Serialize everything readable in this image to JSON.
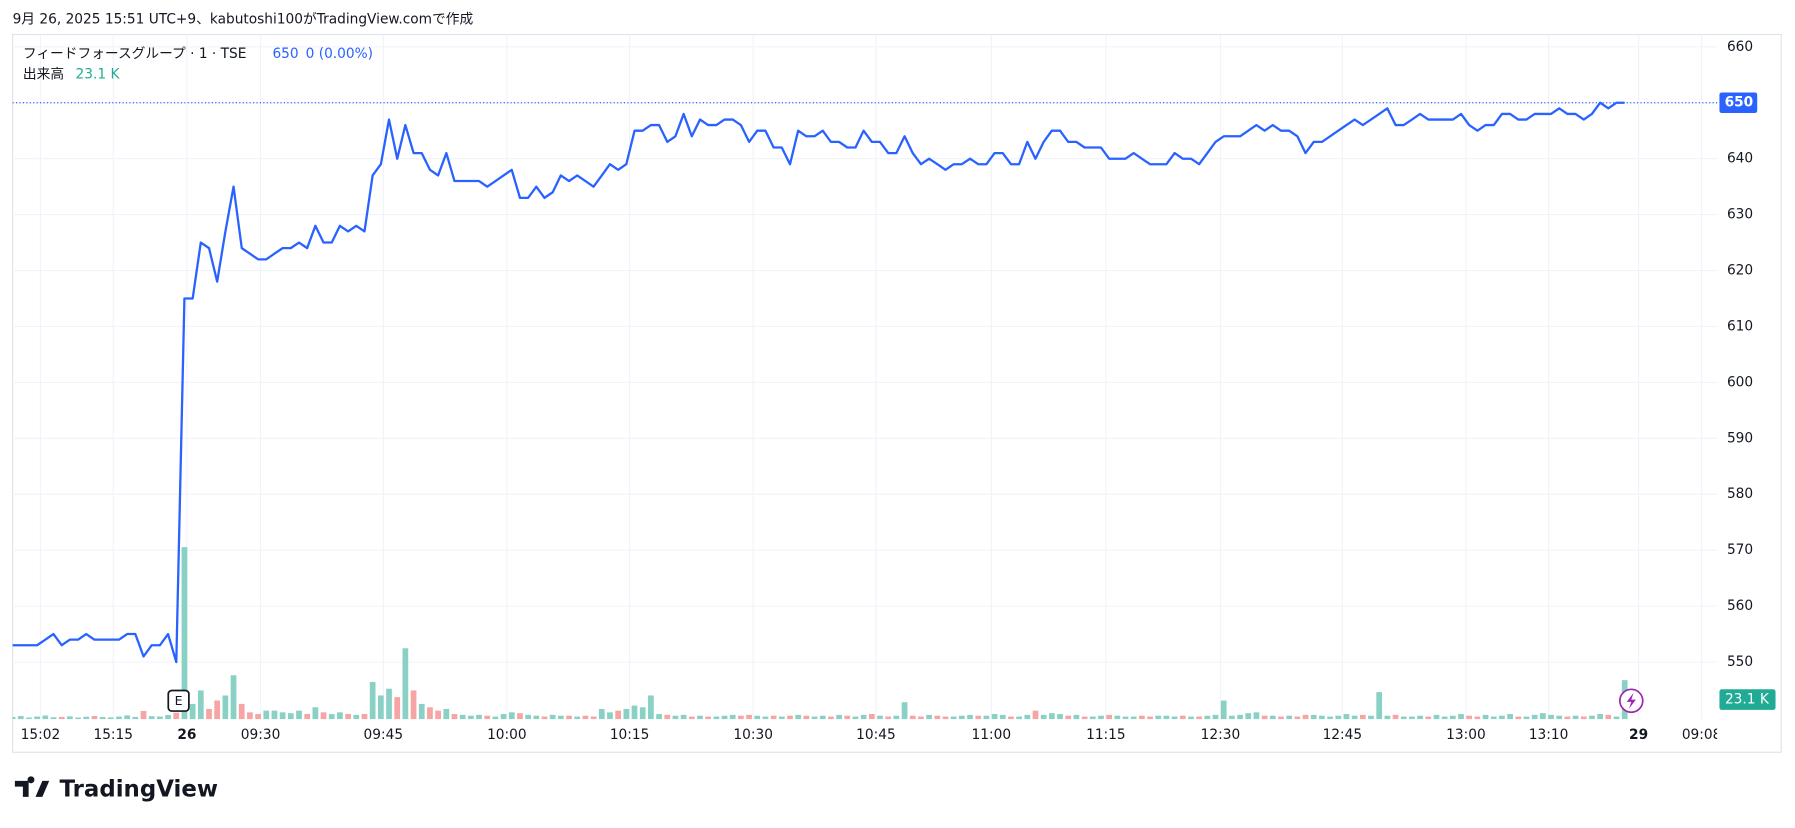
{
  "header": "9月 26, 2025 15:51 UTC+9、kabutoshi100がTradingView.comで作成",
  "footer": {
    "brand": "TradingView"
  },
  "chart_data": {
    "type": "line",
    "title": "フィードフォースグループ · 1 · TSE",
    "last_price": 650,
    "change": "0 (0.00%)",
    "color": "#2962ff",
    "volume_name": "出来高",
    "volume_last_label": "23.1 K",
    "up_color": "#89d1c4",
    "down_color": "#f7a4a4",
    "values": [
      553,
      553,
      553,
      553,
      554,
      555,
      553,
      554,
      554,
      555,
      554,
      554,
      554,
      554,
      555,
      555,
      551,
      553,
      553,
      555,
      550,
      615,
      615,
      625,
      624,
      618,
      627,
      635,
      624,
      623,
      622,
      622,
      623,
      624,
      624,
      625,
      624,
      628,
      625,
      625,
      628,
      627,
      628,
      627,
      637,
      639,
      647,
      640,
      646,
      641,
      641,
      638,
      637,
      641,
      636,
      636,
      636,
      636,
      635,
      636,
      637,
      638,
      633,
      633,
      635,
      633,
      634,
      637,
      636,
      637,
      636,
      635,
      637,
      639,
      638,
      639,
      645,
      645,
      646,
      646,
      643,
      644,
      648,
      644,
      647,
      646,
      646,
      647,
      647,
      646,
      643,
      645,
      645,
      642,
      642,
      639,
      645,
      644,
      644,
      645,
      643,
      643,
      642,
      642,
      645,
      643,
      643,
      641,
      641,
      644,
      641,
      639,
      640,
      639,
      638,
      639,
      639,
      640,
      639,
      639,
      641,
      641,
      639,
      639,
      643,
      640,
      643,
      645,
      645,
      643,
      643,
      642,
      642,
      642,
      640,
      640,
      640,
      641,
      640,
      639,
      639,
      639,
      641,
      640,
      640,
      639,
      641,
      643,
      644,
      644,
      644,
      645,
      646,
      645,
      646,
      645,
      645,
      644,
      641,
      643,
      643,
      644,
      645,
      646,
      647,
      646,
      647,
      648,
      649,
      646,
      646,
      647,
      648,
      647,
      647,
      647,
      647,
      648,
      646,
      645,
      646,
      646,
      648,
      648,
      647,
      647,
      648,
      648,
      648,
      649,
      648,
      648,
      647,
      648,
      650,
      649,
      650,
      650
    ],
    "volume": [
      1200,
      1800,
      900,
      1500,
      2100,
      1100,
      1300,
      1600,
      900,
      1400,
      1800,
      1200,
      1000,
      1500,
      2200,
      1300,
      4800,
      1700,
      1500,
      2400,
      3800,
      102000,
      9000,
      17000,
      6000,
      11000,
      14000,
      26000,
      9000,
      4000,
      3000,
      5000,
      5000,
      4000,
      3500,
      5000,
      3000,
      7000,
      4000,
      3000,
      4000,
      3000,
      2500,
      3000,
      22000,
      14000,
      18000,
      13000,
      42000,
      17000,
      9000,
      7000,
      5000,
      6000,
      3000,
      2500,
      2000,
      2500,
      2000,
      1500,
      3000,
      4000,
      3500,
      2500,
      2000,
      1500,
      2500,
      2000,
      2000,
      1500,
      2000,
      1500,
      6000,
      4000,
      5000,
      6000,
      8000,
      7000,
      14000,
      3000,
      2500,
      2000,
      2500,
      1500,
      2000,
      1500,
      1500,
      2000,
      2500,
      2000,
      2500,
      2000,
      1500,
      2000,
      1500,
      2000,
      2500,
      2000,
      1500,
      2000,
      1500,
      2500,
      2000,
      1500,
      2500,
      3000,
      2000,
      1500,
      2000,
      10000,
      2000,
      1500,
      2500,
      2000,
      1500,
      1500,
      2000,
      2500,
      2000,
      2000,
      3000,
      2500,
      1500,
      1500,
      2500,
      5000,
      2500,
      3500,
      3000,
      2000,
      2500,
      1500,
      1500,
      2000,
      2500,
      2000,
      1500,
      1500,
      2000,
      1500,
      2000,
      2000,
      1500,
      2000,
      1500,
      1500,
      2000,
      2500,
      11000,
      2000,
      2500,
      3500,
      4000,
      2000,
      2000,
      1500,
      2000,
      1500,
      2500,
      2500,
      2000,
      1500,
      2000,
      3000,
      2000,
      2500,
      2000,
      16000,
      2000,
      2500,
      1500,
      1500,
      2000,
      1500,
      2500,
      1500,
      2000,
      3000,
      2000,
      1500,
      2500,
      1500,
      2000,
      3000,
      1500,
      1500,
      2500,
      3500,
      2500,
      2000,
      1500,
      2000,
      1500,
      2000,
      3000,
      2500,
      1500,
      23100
    ],
    "xlim": [
      0,
      208.3
    ],
    "xticks": [
      {
        "value": 3.4,
        "label": "15:02"
      },
      {
        "value": 12.3,
        "label": "15:15"
      },
      {
        "value": 21.3,
        "label": "26"
      },
      {
        "value": 30.3,
        "label": "09:30"
      },
      {
        "value": 45.3,
        "label": "09:45"
      },
      {
        "value": 60.4,
        "label": "10:00"
      },
      {
        "value": 75.4,
        "label": "10:15"
      },
      {
        "value": 90.5,
        "label": "10:30"
      },
      {
        "value": 105.5,
        "label": "10:45"
      },
      {
        "value": 119.6,
        "label": "11:00"
      },
      {
        "value": 133.6,
        "label": "11:15"
      },
      {
        "value": 147.6,
        "label": "12:30"
      },
      {
        "value": 162.5,
        "label": "12:45"
      },
      {
        "value": 177.6,
        "label": "13:00"
      },
      {
        "value": 187.7,
        "label": "13:10"
      },
      {
        "value": 198.7,
        "label": "29"
      },
      {
        "value": 206.4,
        "label": "09:08"
      }
    ],
    "ylim": [
      539.8,
      662.2
    ],
    "yticks": [
      550,
      560,
      570,
      580,
      590,
      600,
      610,
      620,
      630,
      640,
      650,
      660
    ],
    "volume_ylim": [
      0,
      406000
    ],
    "grid": true
  }
}
